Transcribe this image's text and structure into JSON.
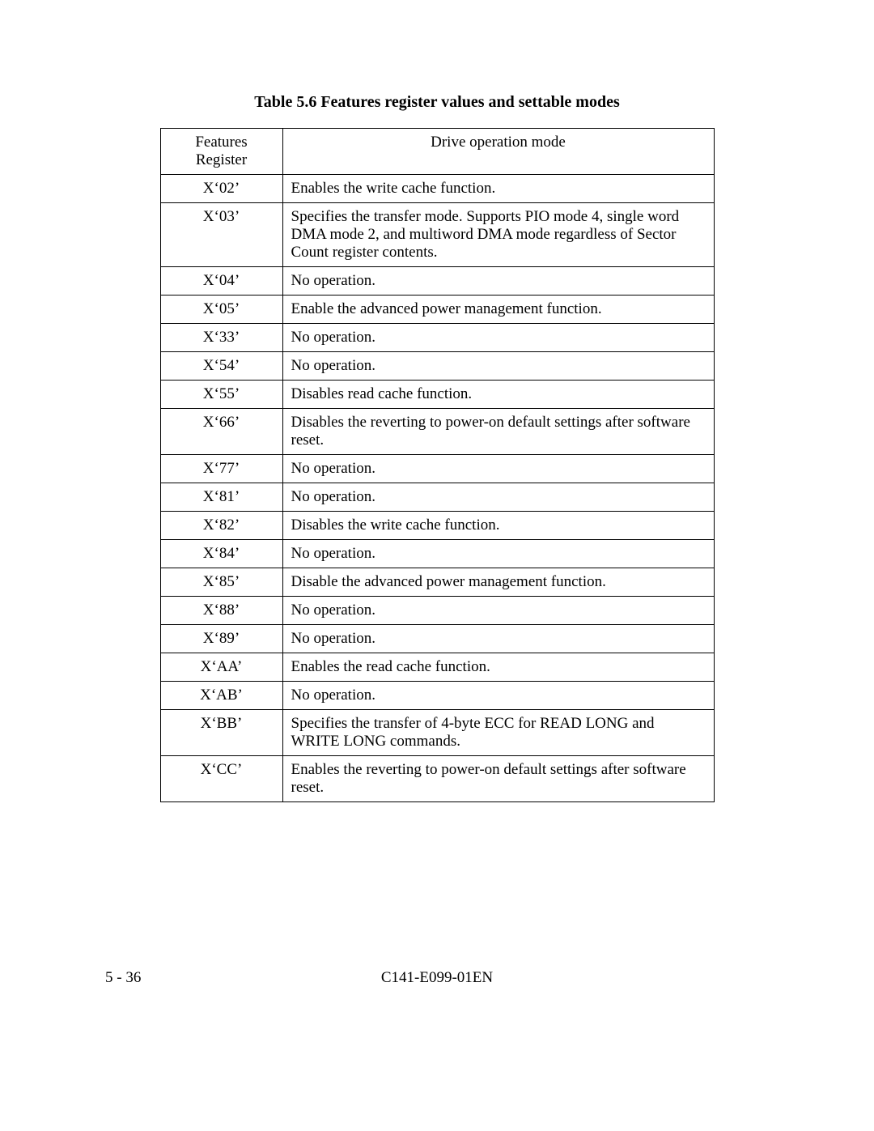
{
  "caption": "Table 5.6    Features register values and settable modes",
  "headers": {
    "col1": "Features Register",
    "col2": "Drive operation mode"
  },
  "rows": [
    {
      "reg": "X‘02’",
      "mode": "Enables the write cache function."
    },
    {
      "reg": "X‘03’",
      "mode": "Specifies the transfer mode.  Supports PIO mode 4, single word DMA mode 2, and multiword DMA mode regardless of Sector Count register contents."
    },
    {
      "reg": "X‘04’",
      "mode": "No operation."
    },
    {
      "reg": "X‘05’",
      "mode": "Enable the advanced power management function."
    },
    {
      "reg": "X‘33’",
      "mode": "No operation."
    },
    {
      "reg": "X‘54’",
      "mode": "No operation."
    },
    {
      "reg": "X‘55’",
      "mode": "Disables read cache function."
    },
    {
      "reg": "X‘66’",
      "mode": "Disables the reverting to power-on default settings after software reset."
    },
    {
      "reg": "X‘77’",
      "mode": "No operation."
    },
    {
      "reg": "X‘81’",
      "mode": "No operation."
    },
    {
      "reg": "X‘82’",
      "mode": "Disables the write cache function."
    },
    {
      "reg": "X‘84’",
      "mode": "No operation."
    },
    {
      "reg": "X‘85’",
      "mode": "Disable the advanced power management function."
    },
    {
      "reg": "X‘88’",
      "mode": "No operation."
    },
    {
      "reg": "X‘89’",
      "mode": "No operation."
    },
    {
      "reg": "X‘AA’",
      "mode": "Enables the read cache function."
    },
    {
      "reg": "X‘AB’",
      "mode": "No operation."
    },
    {
      "reg": "X‘BB’",
      "mode": "Specifies the transfer of 4-byte ECC for READ LONG and WRITE LONG commands."
    },
    {
      "reg": "X‘CC’",
      "mode": "Enables the reverting to power-on default settings after software reset."
    }
  ],
  "footer": {
    "page": "5 - 36",
    "docid": "C141-E099-01EN"
  }
}
